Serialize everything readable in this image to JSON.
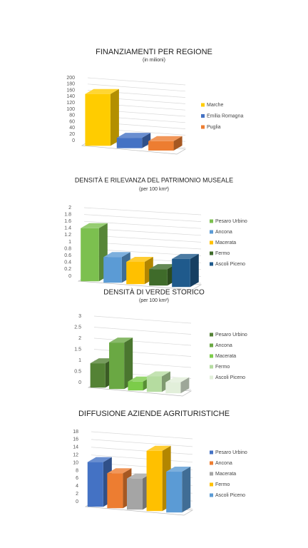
{
  "chart_data": [
    {
      "type": "bar3d",
      "title": "FINANZIAMENTI PER REGIONE",
      "subtitle": "(in milioni)",
      "categories": [
        "Marche",
        "Emilia Romagna",
        "Puglia"
      ],
      "values": [
        165,
        33,
        30
      ],
      "colors": [
        "#ffcc00",
        "#4472c4",
        "#ed7d31"
      ],
      "ylim": [
        0,
        200
      ],
      "yticks": [
        0,
        20,
        40,
        60,
        80,
        100,
        120,
        140,
        160,
        180,
        200
      ],
      "grid": true,
      "legend": "right"
    },
    {
      "type": "bar3d",
      "title": "DENSITÀ E RILEVANZA DEL PATRIMONIO MUSEALE",
      "subtitle": "(per 100 km²)",
      "categories": [
        "Pesaro Urbino",
        "Ancona",
        "Macerata",
        "Fermo",
        "Ascoli Piceno"
      ],
      "values": [
        1.55,
        0.75,
        0.65,
        0.48,
        0.82
      ],
      "colors": [
        "#7cc04f",
        "#5b9bd5",
        "#ffc000",
        "#3f6b2a",
        "#1f5a8c"
      ],
      "ylim": [
        0,
        2
      ],
      "yticks": [
        0,
        0.2,
        0.4,
        0.6,
        0.8,
        1,
        1.2,
        1.4,
        1.6,
        1.8,
        2
      ],
      "grid": true,
      "legend": "right"
    },
    {
      "type": "bar3d",
      "title": "DENSITÀ DI VERDE STORICO",
      "subtitle": "(per 100 km²)",
      "categories": [
        "Pesaro Urbino",
        "Ancona",
        "Macerata",
        "Fermo",
        "Ascoli Piceno"
      ],
      "values": [
        1.1,
        2.1,
        0.4,
        0.7,
        0.5
      ],
      "colors": [
        "#548235",
        "#6aa843",
        "#7ccc4a",
        "#b5dca0",
        "#e2efda"
      ],
      "ylim": [
        0,
        3
      ],
      "yticks": [
        0,
        0.5,
        1,
        1.5,
        2,
        2.5,
        3
      ],
      "grid": true,
      "legend": "right"
    },
    {
      "type": "bar3d",
      "title": "DIFFUSIONE AZIENDE AGRITURISTICHE",
      "categories": [
        "Pesaro Urbino",
        "Ancona",
        "Macerata",
        "Fermo",
        "Ascoli Piceno"
      ],
      "values": [
        11.5,
        9,
        8,
        15.5,
        10.5
      ],
      "colors": [
        "#4472c4",
        "#ed7d31",
        "#a5a5a5",
        "#ffc000",
        "#5b9bd5"
      ],
      "ylim": [
        0,
        18
      ],
      "yticks": [
        0,
        2,
        4,
        6,
        8,
        10,
        12,
        14,
        16,
        18
      ],
      "grid": true,
      "legend": "right"
    }
  ]
}
